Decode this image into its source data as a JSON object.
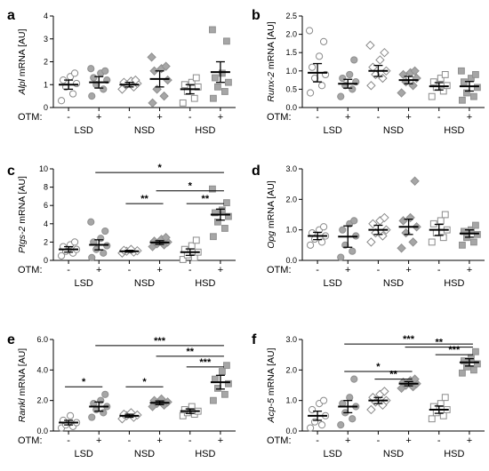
{
  "otm_label": "OTM:",
  "colors": {
    "white": "#ffffff",
    "light": "#cfcfcf",
    "mid": "#a6a6a6",
    "stroke": "#8a8a8a"
  },
  "chart_data": [
    {
      "panel": "a",
      "type": "scatter",
      "ylabel": "Alpl mRNA [AU]",
      "ylabel_italic": "Alpl",
      "ylabel_rest": " mRNA [AU]",
      "ylim": [
        0,
        4
      ],
      "yticks": [
        "0",
        "1",
        "2",
        "3",
        "4"
      ],
      "groups": [
        "LSD",
        "NSD",
        "HSD"
      ],
      "otm": [
        "-",
        "+",
        "-",
        "+",
        "-",
        "+"
      ],
      "series": [
        {
          "group": "LSD",
          "otm": "-",
          "shape": "circle",
          "fill": "white",
          "mean": 1.0,
          "sem": 0.2,
          "points": [
            0.3,
            0.6,
            0.9,
            1.05,
            1.2,
            1.35,
            1.5
          ]
        },
        {
          "group": "LSD",
          "otm": "+",
          "shape": "circle",
          "fill": "mid",
          "mean": 1.1,
          "sem": 0.25,
          "points": [
            0.5,
            0.8,
            1.0,
            1.2,
            1.3,
            1.5,
            1.6,
            1.7
          ]
        },
        {
          "group": "NSD",
          "otm": "-",
          "shape": "diamond",
          "fill": "white",
          "mean": 1.0,
          "sem": 0.1,
          "points": [
            0.8,
            0.9,
            1.0,
            1.05,
            1.1,
            1.15,
            1.2
          ]
        },
        {
          "group": "NSD",
          "otm": "+",
          "shape": "diamond",
          "fill": "mid",
          "mean": 1.25,
          "sem": 0.35,
          "points": [
            0.2,
            0.5,
            0.8,
            1.2,
            1.6,
            1.7,
            1.8,
            2.2
          ]
        },
        {
          "group": "HSD",
          "otm": "-",
          "shape": "square",
          "fill": "white",
          "mean": 0.8,
          "sem": 0.2,
          "points": [
            0.2,
            0.4,
            0.7,
            0.9,
            1.0,
            1.1,
            1.3
          ]
        },
        {
          "group": "HSD",
          "otm": "+",
          "shape": "square",
          "fill": "mid",
          "mean": 1.55,
          "sem": 0.45,
          "points": [
            0.4,
            0.7,
            0.9,
            1.1,
            1.3,
            1.5,
            2.9,
            3.4
          ]
        }
      ],
      "sig": []
    },
    {
      "panel": "b",
      "type": "scatter",
      "ylabel": "Runx-2 mRNA [AU]",
      "ylabel_italic": "Runx-2",
      "ylabel_rest": " mRNA [AU]",
      "ylim": [
        0,
        2.5
      ],
      "yticks": [
        "0.0",
        "0.5",
        "1.0",
        "1.5",
        "2.0",
        "2.5"
      ],
      "groups": [
        "LSD",
        "NSD",
        "HSD"
      ],
      "otm": [
        "-",
        "+",
        "-",
        "+",
        "-",
        "+"
      ],
      "series": [
        {
          "group": "LSD",
          "otm": "-",
          "shape": "circle",
          "fill": "white",
          "mean": 0.95,
          "sem": 0.25,
          "points": [
            0.4,
            0.6,
            0.8,
            0.9,
            1.1,
            1.4,
            1.8,
            2.1
          ]
        },
        {
          "group": "LSD",
          "otm": "+",
          "shape": "circle",
          "fill": "mid",
          "mean": 0.65,
          "sem": 0.12,
          "points": [
            0.3,
            0.5,
            0.6,
            0.7,
            0.8,
            0.9,
            1.3
          ]
        },
        {
          "group": "NSD",
          "otm": "-",
          "shape": "diamond",
          "fill": "white",
          "mean": 1.0,
          "sem": 0.15,
          "points": [
            0.6,
            0.8,
            0.9,
            1.0,
            1.1,
            1.3,
            1.5,
            1.7
          ]
        },
        {
          "group": "NSD",
          "otm": "+",
          "shape": "diamond",
          "fill": "mid",
          "mean": 0.75,
          "sem": 0.1,
          "points": [
            0.4,
            0.6,
            0.7,
            0.8,
            0.9,
            0.95,
            1.0
          ]
        },
        {
          "group": "HSD",
          "otm": "-",
          "shape": "square",
          "fill": "white",
          "mean": 0.58,
          "sem": 0.1,
          "points": [
            0.3,
            0.45,
            0.55,
            0.6,
            0.7,
            0.8,
            0.9
          ]
        },
        {
          "group": "HSD",
          "otm": "+",
          "shape": "square",
          "fill": "mid",
          "mean": 0.58,
          "sem": 0.13,
          "points": [
            0.2,
            0.3,
            0.4,
            0.55,
            0.7,
            0.8,
            0.9,
            1.0
          ]
        }
      ],
      "sig": []
    },
    {
      "panel": "c",
      "type": "scatter",
      "ylabel": "Ptgs-2 mRNA [AU]",
      "ylabel_italic": "Ptgs-2",
      "ylabel_rest": " mRNA [AU]",
      "ylim": [
        0,
        10
      ],
      "yticks": [
        "0",
        "2",
        "4",
        "6",
        "8",
        "10"
      ],
      "groups": [
        "LSD",
        "NSD",
        "HSD"
      ],
      "otm": [
        "-",
        "+",
        "-",
        "+",
        "-",
        "+"
      ],
      "series": [
        {
          "group": "LSD",
          "otm": "-",
          "shape": "circle",
          "fill": "white",
          "mean": 1.2,
          "sem": 0.3,
          "points": [
            0.5,
            0.8,
            1.0,
            1.2,
            1.5,
            1.7,
            2.0
          ]
        },
        {
          "group": "LSD",
          "otm": "+",
          "shape": "circle",
          "fill": "mid",
          "mean": 1.7,
          "sem": 0.55,
          "points": [
            0.3,
            0.8,
            1.2,
            1.6,
            2.0,
            2.4,
            3.2,
            4.2
          ]
        },
        {
          "group": "NSD",
          "otm": "-",
          "shape": "diamond",
          "fill": "white",
          "mean": 1.0,
          "sem": 0.1,
          "points": [
            0.8,
            0.9,
            1.0,
            1.05,
            1.1,
            1.2
          ]
        },
        {
          "group": "NSD",
          "otm": "+",
          "shape": "diamond",
          "fill": "mid",
          "mean": 1.95,
          "sem": 0.2,
          "points": [
            1.5,
            1.7,
            1.8,
            2.0,
            2.1,
            2.3,
            2.5
          ]
        },
        {
          "group": "HSD",
          "otm": "-",
          "shape": "square",
          "fill": "white",
          "mean": 0.9,
          "sem": 0.35,
          "points": [
            0.1,
            0.3,
            0.6,
            0.9,
            1.2,
            1.6,
            2.2
          ]
        },
        {
          "group": "HSD",
          "otm": "+",
          "shape": "square",
          "fill": "mid",
          "mean": 5.0,
          "sem": 0.6,
          "points": [
            2.6,
            3.5,
            4.2,
            4.8,
            5.2,
            5.5,
            6.3,
            7.8
          ]
        }
      ],
      "sig": [
        {
          "label": "*",
          "from": 1,
          "to": 5,
          "y": 9.6
        },
        {
          "label": "**",
          "from": 2,
          "to": 3,
          "y": 6.2
        },
        {
          "label": "*",
          "from": 3,
          "to": 5,
          "y": 7.6
        },
        {
          "label": "**",
          "from": 4,
          "to": 5,
          "y": 6.2
        }
      ]
    },
    {
      "panel": "d",
      "type": "scatter",
      "ylabel": "Opg mRNA [AU]",
      "ylabel_italic": "Opg",
      "ylabel_rest": " mRNA [AU]",
      "ylim": [
        0,
        3
      ],
      "yticks": [
        "0.0",
        "1.0",
        "2.0",
        "3.0"
      ],
      "groups": [
        "LSD",
        "NSD",
        "HSD"
      ],
      "otm": [
        "-",
        "+",
        "-",
        "+",
        "-",
        "+"
      ],
      "series": [
        {
          "group": "LSD",
          "otm": "-",
          "shape": "circle",
          "fill": "white",
          "mean": 0.8,
          "sem": 0.12,
          "points": [
            0.5,
            0.6,
            0.7,
            0.8,
            0.9,
            1.0,
            1.1
          ]
        },
        {
          "group": "LSD",
          "otm": "+",
          "shape": "circle",
          "fill": "mid",
          "mean": 0.78,
          "sem": 0.35,
          "points": [
            0.1,
            0.3,
            0.5,
            0.8,
            1.0,
            1.2,
            1.3
          ]
        },
        {
          "group": "NSD",
          "otm": "-",
          "shape": "diamond",
          "fill": "white",
          "mean": 1.0,
          "sem": 0.15,
          "points": [
            0.6,
            0.8,
            0.9,
            1.0,
            1.2,
            1.3,
            1.4
          ]
        },
        {
          "group": "NSD",
          "otm": "+",
          "shape": "diamond",
          "fill": "mid",
          "mean": 1.1,
          "sem": 0.25,
          "points": [
            0.4,
            0.6,
            0.9,
            1.1,
            1.3,
            1.4,
            2.6
          ]
        },
        {
          "group": "HSD",
          "otm": "-",
          "shape": "square",
          "fill": "white",
          "mean": 1.0,
          "sem": 0.18,
          "points": [
            0.6,
            0.75,
            0.9,
            1.0,
            1.2,
            1.3,
            1.5
          ]
        },
        {
          "group": "HSD",
          "otm": "+",
          "shape": "square",
          "fill": "mid",
          "mean": 0.88,
          "sem": 0.12,
          "points": [
            0.5,
            0.6,
            0.75,
            0.85,
            0.95,
            1.0,
            1.15
          ]
        }
      ],
      "sig": []
    },
    {
      "panel": "e",
      "type": "scatter",
      "ylabel": "Rankl mRNA [AU]",
      "ylabel_italic": "Rankl",
      "ylabel_rest": " mRNA [AU]",
      "ylim": [
        0,
        6
      ],
      "yticks": [
        "0.0",
        "2.0",
        "4.0",
        "6.0"
      ],
      "groups": [
        "LSD",
        "NSD",
        "HSD"
      ],
      "otm": [
        "-",
        "+",
        "-",
        "+",
        "-",
        "+"
      ],
      "series": [
        {
          "group": "LSD",
          "otm": "-",
          "shape": "circle",
          "fill": "white",
          "mean": 0.55,
          "sem": 0.15,
          "points": [
            0.2,
            0.3,
            0.4,
            0.55,
            0.7,
            1.0
          ]
        },
        {
          "group": "LSD",
          "otm": "+",
          "shape": "circle",
          "fill": "mid",
          "mean": 1.6,
          "sem": 0.3,
          "points": [
            0.9,
            1.2,
            1.4,
            1.6,
            1.8,
            2.0,
            2.4
          ]
        },
        {
          "group": "NSD",
          "otm": "-",
          "shape": "diamond",
          "fill": "white",
          "mean": 1.0,
          "sem": 0.1,
          "points": [
            0.8,
            0.9,
            1.0,
            1.05,
            1.1,
            1.2
          ]
        },
        {
          "group": "NSD",
          "otm": "+",
          "shape": "diamond",
          "fill": "mid",
          "mean": 1.85,
          "sem": 0.12,
          "points": [
            1.6,
            1.7,
            1.8,
            1.9,
            2.0,
            2.1
          ]
        },
        {
          "group": "HSD",
          "otm": "-",
          "shape": "square",
          "fill": "white",
          "mean": 1.3,
          "sem": 0.15,
          "points": [
            1.0,
            1.1,
            1.2,
            1.3,
            1.4,
            1.6
          ]
        },
        {
          "group": "HSD",
          "otm": "+",
          "shape": "square",
          "fill": "mid",
          "mean": 3.2,
          "sem": 0.45,
          "points": [
            2.0,
            2.4,
            2.8,
            3.1,
            3.4,
            3.9,
            4.3
          ]
        }
      ],
      "sig": [
        {
          "label": "***",
          "from": 1,
          "to": 5,
          "y": 5.6
        },
        {
          "label": "*",
          "from": 0,
          "to": 1,
          "y": 2.9
        },
        {
          "label": "*",
          "from": 2,
          "to": 3,
          "y": 2.9
        },
        {
          "label": "**",
          "from": 3,
          "to": 5,
          "y": 4.9
        },
        {
          "label": "***",
          "from": 4,
          "to": 5,
          "y": 4.2
        }
      ]
    },
    {
      "panel": "f",
      "type": "scatter",
      "ylabel": "Acp-5 mRNA [AU]",
      "ylabel_italic": "Acp-5",
      "ylabel_rest": " mRNA [AU]",
      "ylim": [
        0,
        3
      ],
      "yticks": [
        "0.0",
        "1.0",
        "2.0",
        "3.0"
      ],
      "groups": [
        "LSD",
        "NSD",
        "HSD"
      ],
      "otm": [
        "-",
        "+",
        "-",
        "+",
        "-",
        "+"
      ],
      "series": [
        {
          "group": "LSD",
          "otm": "-",
          "shape": "circle",
          "fill": "white",
          "mean": 0.5,
          "sem": 0.15,
          "points": [
            0.1,
            0.2,
            0.3,
            0.5,
            0.7,
            0.9,
            1.0
          ]
        },
        {
          "group": "LSD",
          "otm": "+",
          "shape": "circle",
          "fill": "mid",
          "mean": 0.8,
          "sem": 0.2,
          "points": [
            0.2,
            0.4,
            0.6,
            0.8,
            0.9,
            1.1,
            1.7
          ]
        },
        {
          "group": "NSD",
          "otm": "-",
          "shape": "diamond",
          "fill": "white",
          "mean": 1.0,
          "sem": 0.1,
          "points": [
            0.7,
            0.85,
            0.95,
            1.0,
            1.1,
            1.2,
            1.3
          ]
        },
        {
          "group": "NSD",
          "otm": "+",
          "shape": "diamond",
          "fill": "mid",
          "mean": 1.55,
          "sem": 0.07,
          "points": [
            1.4,
            1.45,
            1.5,
            1.55,
            1.6,
            1.65,
            1.7
          ]
        },
        {
          "group": "HSD",
          "otm": "-",
          "shape": "square",
          "fill": "white",
          "mean": 0.7,
          "sem": 0.12,
          "points": [
            0.4,
            0.5,
            0.6,
            0.7,
            0.8,
            0.9,
            1.1
          ]
        },
        {
          "group": "HSD",
          "otm": "+",
          "shape": "square",
          "fill": "mid",
          "mean": 2.25,
          "sem": 0.12,
          "points": [
            1.9,
            2.0,
            2.1,
            2.2,
            2.3,
            2.4,
            2.6
          ]
        }
      ],
      "sig": [
        {
          "label": "***",
          "from": 1,
          "to": 5,
          "y": 2.85
        },
        {
          "label": "*",
          "from": 1,
          "to": 3,
          "y": 1.95
        },
        {
          "label": "**",
          "from": 2,
          "to": 3,
          "y": 1.7
        },
        {
          "label": "**",
          "from": 3,
          "to": 5,
          "y": 2.75
        },
        {
          "label": "***",
          "from": 4,
          "to": 5,
          "y": 2.5
        }
      ]
    }
  ]
}
